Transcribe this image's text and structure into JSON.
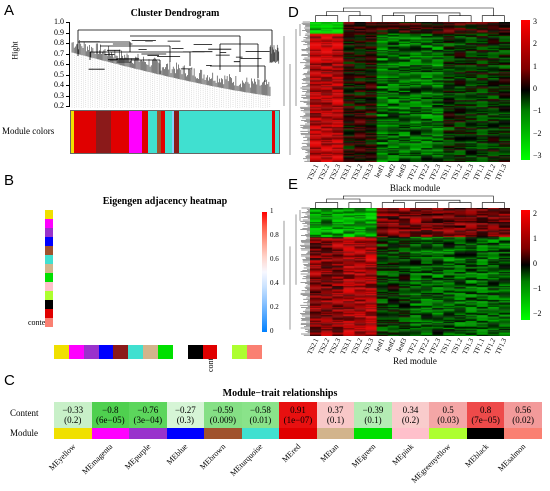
{
  "panels": {
    "A": {
      "label": "A",
      "title": "Cluster Dendrogram",
      "ylabel": "Hight",
      "yticks": [
        "1.0",
        "0.9",
        "0.8",
        "0.7",
        "0.6",
        "0.5",
        "0.4",
        "0.3",
        "0.2"
      ],
      "module_colors_label": "Module colors",
      "module_color_strip": [
        {
          "color": "#f0e000",
          "w": 1.2
        },
        {
          "color": "#e00000",
          "w": 10
        },
        {
          "color": "#8b1a1a",
          "w": 7
        },
        {
          "color": "#e00000",
          "w": 8
        },
        {
          "color": "#ff00ff",
          "w": 6
        },
        {
          "color": "#e00000",
          "w": 3
        },
        {
          "color": "#40e0d0",
          "w": 4
        },
        {
          "color": "#a0522d",
          "w": 1.5
        },
        {
          "color": "#e00000",
          "w": 2
        },
        {
          "color": "#40e0d0",
          "w": 3
        },
        {
          "color": "#87cefa",
          "w": 1
        },
        {
          "color": "#8b1a1a",
          "w": 2.5
        },
        {
          "color": "#40e0d0",
          "w": 42
        },
        {
          "color": "#e00000",
          "w": 1.3
        },
        {
          "color": "#40e0d0",
          "w": 2
        }
      ]
    },
    "B": {
      "label": "B",
      "title": "Eigengen adjacency heatmap",
      "side_label": "content",
      "bottom_label": "content",
      "colorbar_ticks": [
        "1",
        "0.8",
        "0.6",
        "0.4",
        "0.2",
        "0"
      ],
      "colorbar_colors": [
        "#ff0000",
        "#ff5f4a",
        "#ff9d8a",
        "#ffd4cb",
        "#f8f8ff",
        "#c9e2ff",
        "#8ec4ff",
        "#4aa3ff",
        "#0080ff"
      ],
      "row_colors": [
        "#f0e000",
        "#ff00ff",
        "#9932cc",
        "#0000ff",
        "#a0522d",
        "#40e0d0",
        "#d2b48c",
        "#00e000",
        "#ffc0cb",
        "#adff2f",
        "#000000",
        "#e00000",
        "#fa8072",
        "#ffffff"
      ],
      "col_colors": [
        "#f0e000",
        "#ff00ff",
        "#9932cc",
        "#0000ff",
        "#8b1a1a",
        "#40e0d0",
        "#d2b48c",
        "#00e000",
        "#ffffff",
        "#000000",
        "#e00000",
        "#ffffff",
        "#adff2f",
        "#fa8072"
      ]
    },
    "C": {
      "label": "C",
      "title": "Module−trait relationships",
      "row_label": "Content",
      "module_row_label": "Module",
      "cells": [
        {
          "module": "MEyellow",
          "corr": "−0.33",
          "p": "(0.2)",
          "fill": "#c8f0c8",
          "color": "#f0e000"
        },
        {
          "module": "MEmagenta",
          "corr": "−0.8",
          "p": "(6e−05)",
          "fill": "#4fd04f",
          "color": "#ff00ff"
        },
        {
          "module": "MEpurple",
          "corr": "−0.76",
          "p": "(3e−04)",
          "fill": "#5cd65c",
          "color": "#9932cc"
        },
        {
          "module": "MEblue",
          "corr": "−0.27",
          "p": "(0.3)",
          "fill": "#d6f5d6",
          "color": "#0000ff"
        },
        {
          "module": "MEbrown",
          "corr": "−0.59",
          "p": "(0.009)",
          "fill": "#85e085",
          "color": "#a0522d"
        },
        {
          "module": "MEturquoise",
          "corr": "−0.58",
          "p": "(0.01)",
          "fill": "#8ae38a",
          "color": "#40e0d0"
        },
        {
          "module": "MEred",
          "corr": "0.91",
          "p": "(1e−07)",
          "fill": "#e81010",
          "color": "#e00000"
        },
        {
          "module": "MEtan",
          "corr": "0.37",
          "p": "(0.1)",
          "fill": "#f8c8c8",
          "color": "#d2b48c"
        },
        {
          "module": "MEgreen",
          "corr": "−0.39",
          "p": "(0.1)",
          "fill": "#b4ecb4",
          "color": "#00e000"
        },
        {
          "module": "MEpink",
          "corr": "0.34",
          "p": "(0.2)",
          "fill": "#f9cccc",
          "color": "#ffc0cb"
        },
        {
          "module": "MEgreenyellow",
          "corr": "0.5",
          "p": "(0.03)",
          "fill": "#f4a6a6",
          "color": "#adff2f"
        },
        {
          "module": "MEblack",
          "corr": "0.8",
          "p": "(7e−05)",
          "fill": "#ee4a4a",
          "color": "#000000"
        },
        {
          "module": "MEsalmon",
          "corr": "0.56",
          "p": "(0.02)",
          "fill": "#f39a9a",
          "color": "#fa8072"
        }
      ]
    },
    "D": {
      "label": "D",
      "caption": "Black module",
      "colorbar_ticks": [
        "3",
        "2",
        "1",
        "0",
        "−1",
        "−2",
        "−3"
      ],
      "samples": [
        "TS2.1",
        "TS2.2",
        "TS2.3",
        "TS3.1",
        "TS3.2",
        "TS3.3",
        "leaf1",
        "leaf2",
        "leaf3",
        "TF2.1",
        "TF2.2",
        "TF2.3",
        "TS1.1",
        "TS1.2",
        "TS1.3",
        "TF1.1",
        "TF1.2",
        "TF1.3"
      ]
    },
    "E": {
      "label": "E",
      "caption": "Red module",
      "colorbar_ticks": [
        "2",
        "1",
        "0",
        "−1",
        "−2"
      ],
      "samples": [
        "TS2.1",
        "TS2.2",
        "TS2.3",
        "TS3.1",
        "TS3.2",
        "TS3.3",
        "leaf1",
        "leaf2",
        "leaf3",
        "TF2.1",
        "TF2.2",
        "TF2.3",
        "TS1.1",
        "TS1.2",
        "TS1.3",
        "TF1.1",
        "TF1.2",
        "TF1.3"
      ]
    }
  }
}
